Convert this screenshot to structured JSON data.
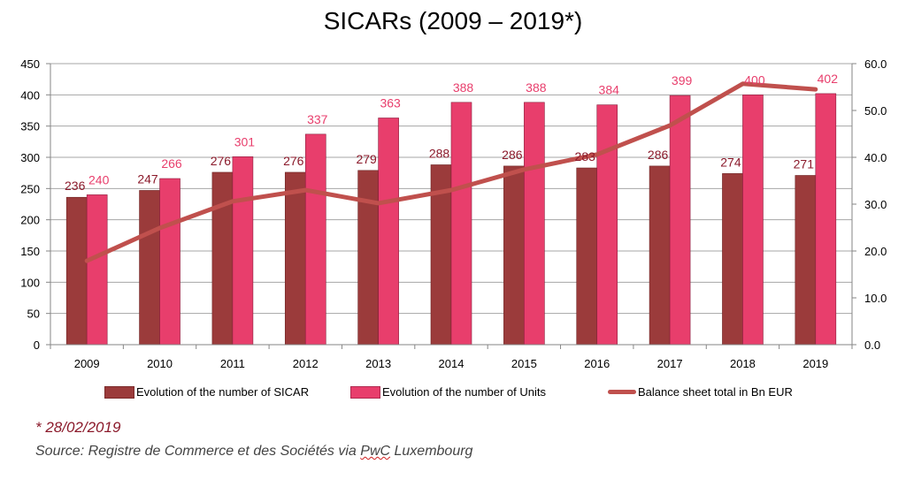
{
  "chart_data": {
    "type": "bar",
    "title": "SICARs (2009 – 2019*)",
    "categories": [
      "2009",
      "2010",
      "2011",
      "2012",
      "2013",
      "2014",
      "2015",
      "2016",
      "2017",
      "2018",
      "2019"
    ],
    "series": [
      {
        "name": "Evolution of the number of SICAR",
        "type": "bar",
        "axis": "left",
        "color": "#9b3b3b",
        "values": [
          236,
          247,
          276,
          276,
          279,
          288,
          286,
          283,
          286,
          274,
          271
        ]
      },
      {
        "name": "Evolution of the number of Units",
        "type": "bar",
        "axis": "left",
        "color": "#e83e6c",
        "values": [
          240,
          266,
          301,
          337,
          363,
          388,
          388,
          384,
          399,
          400,
          402
        ]
      },
      {
        "name": "Balance sheet total in Bn EUR",
        "type": "line",
        "axis": "right",
        "color": "#c0504d",
        "values": [
          17.9,
          24.9,
          30.6,
          33.0,
          30.2,
          33.0,
          37.4,
          40.6,
          46.8,
          55.7,
          54.5
        ]
      }
    ],
    "left_axis": {
      "ylim": [
        0,
        450
      ],
      "ticks": [
        "0",
        "50",
        "100",
        "150",
        "200",
        "250",
        "300",
        "350",
        "400",
        "450"
      ]
    },
    "right_axis": {
      "ylim": [
        0,
        60
      ],
      "ticks": [
        "0.0",
        "10.0",
        "20.0",
        "30.0",
        "40.0",
        "50.0",
        "60.0"
      ]
    },
    "grid": true,
    "legend_position": "bottom",
    "label_colors": {
      "sicar": "#8b1a2b",
      "units": "#e83e6c"
    }
  },
  "footnote": "* 28/02/2019",
  "source_prefix": "Source:  Registre de Commerce et des Sociétés via ",
  "source_pwc": "PwC",
  "source_suffix": " Luxembourg"
}
